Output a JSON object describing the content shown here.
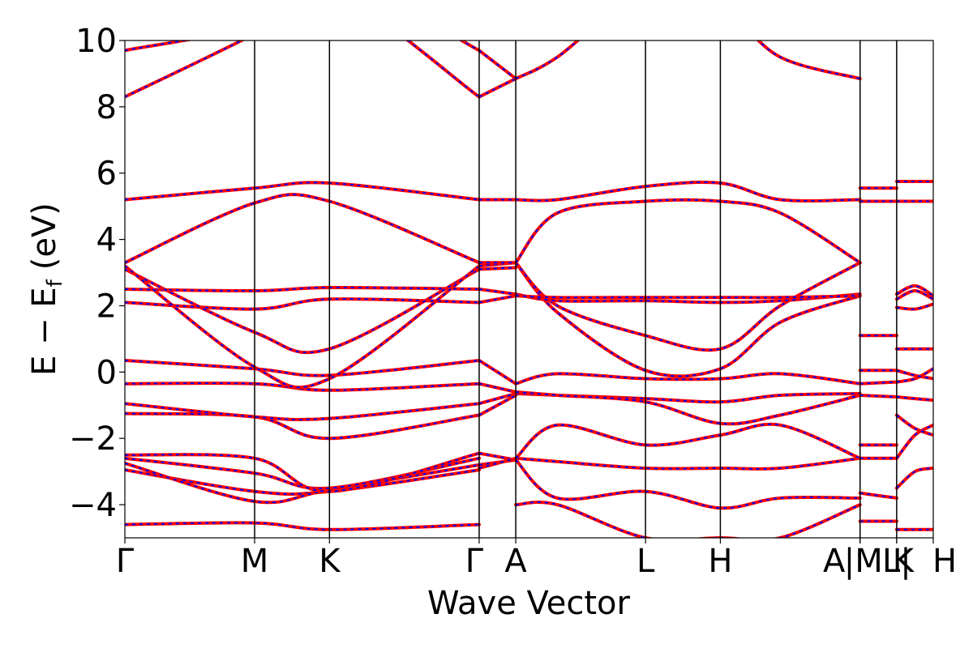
{
  "chart_data": {
    "type": "line",
    "xlabel": "Wave Vector",
    "ylabel": "E − E",
    "ylabel_sub": "f",
    "ylabel_unit": "(eV)",
    "ylim": [
      -5,
      10
    ],
    "yticks": [
      {
        "value": 10,
        "label": "10"
      },
      {
        "value": 8,
        "label": "8"
      },
      {
        "value": 6,
        "label": "6"
      },
      {
        "value": 4,
        "label": "4"
      },
      {
        "value": 2,
        "label": "2"
      },
      {
        "value": 0,
        "label": "0"
      },
      {
        "value": -2,
        "label": "−2"
      },
      {
        "value": -4,
        "label": "−4"
      }
    ],
    "xlim": [
      0,
      22.1
    ],
    "kpoints": [
      {
        "label": "Γ",
        "x": 0
      },
      {
        "label": "M",
        "x": 3.9
      },
      {
        "label": "K",
        "x": 6.15
      },
      {
        "label": "Γ",
        "x": 10.65
      },
      {
        "label": "A",
        "x": 11.75
      },
      {
        "label": "L",
        "x": 15.65
      },
      {
        "label": "H",
        "x": 17.9
      },
      {
        "label": "A",
        "x": 22.1
      },
      {
        "label": "|M",
        "x": 22.1
      },
      {
        "label": "L|",
        "x": 23.2
      },
      {
        "label": "K",
        "x": 23.2
      },
      {
        "label": "H",
        "x": 24.3
      }
    ],
    "dashed_overlay": true,
    "grid": false,
    "series_colors": {
      "solid": "#ff0000",
      "dashed": "#0000ff"
    },
    "segments": [
      {
        "x": [
          0,
          3.9,
          6.15,
          10.65
        ],
        "bands": [
          [
            -4.6,
            -4.55,
            -4.75,
            -4.6
          ],
          [
            -2.95,
            -3.6,
            -3.6,
            -2.95
          ],
          [
            -2.75,
            -3.9,
            -3.55,
            -2.8
          ],
          [
            -2.6,
            -3.05,
            -3.5,
            -2.6
          ],
          [
            -2.5,
            -2.6,
            -3.6,
            -2.45
          ],
          [
            -1.25,
            -1.35,
            -2.0,
            -1.3
          ],
          [
            -0.95,
            -1.35,
            -1.4,
            -0.95
          ],
          [
            -0.35,
            -0.35,
            -0.55,
            -0.35
          ],
          [
            0.35,
            0.1,
            -0.1,
            0.35
          ],
          [
            2.1,
            1.9,
            2.2,
            2.1
          ],
          [
            2.5,
            2.45,
            2.55,
            2.5
          ],
          [
            3.1,
            1.2,
            0.7,
            3.1
          ],
          [
            3.2,
            0.15,
            -0.2,
            3.2
          ],
          [
            3.3,
            5.1,
            5.15,
            3.3
          ],
          [
            5.2,
            5.55,
            5.7,
            5.2
          ],
          [
            8.3,
            10.2,
            11.5,
            8.3
          ],
          [
            9.7,
            10.5,
            12.0,
            9.7
          ]
        ]
      },
      {
        "x": [
          10.65,
          11.75
        ],
        "bands": [
          [
            -2.45,
            -2.65
          ],
          [
            -2.8,
            -2.65
          ],
          [
            -2.9,
            -2.6
          ],
          [
            -1.3,
            -0.7
          ],
          [
            -0.95,
            -0.65
          ],
          [
            -0.35,
            -0.6
          ],
          [
            0.35,
            -0.35
          ],
          [
            2.1,
            2.3
          ],
          [
            2.5,
            2.35
          ],
          [
            3.1,
            3.15
          ],
          [
            3.2,
            3.3
          ],
          [
            3.3,
            3.3
          ],
          [
            5.2,
            5.2
          ],
          [
            8.3,
            8.85
          ],
          [
            9.7,
            8.85
          ]
        ]
      },
      {
        "x": [
          11.75,
          13.0,
          15.65,
          17.9,
          19.7,
          22.1
        ],
        "bands": [
          [
            -4.0,
            -4.0,
            -5.0,
            -5.0,
            -5.0,
            -4.0
          ],
          [
            -2.65,
            -3.8,
            -3.6,
            -4.1,
            -3.8,
            -3.8
          ],
          [
            -2.6,
            -2.7,
            -2.9,
            -2.9,
            -2.9,
            -2.6
          ],
          [
            -2.6,
            -1.6,
            -2.2,
            -1.9,
            -1.6,
            -2.6
          ],
          [
            -0.65,
            -0.7,
            -0.8,
            -0.9,
            -0.7,
            -0.65
          ],
          [
            -0.6,
            -0.7,
            -0.9,
            -1.55,
            -1.3,
            -0.7
          ],
          [
            -0.35,
            -0.05,
            -0.2,
            -0.2,
            -0.05,
            -0.35
          ],
          [
            3.3,
            1.8,
            0.05,
            0.1,
            1.5,
            2.3
          ],
          [
            3.3,
            2.0,
            1.1,
            0.7,
            2.0,
            3.3
          ],
          [
            2.35,
            2.15,
            2.15,
            2.1,
            2.15,
            2.35
          ],
          [
            2.3,
            2.25,
            2.25,
            2.25,
            2.25,
            2.3
          ],
          [
            3.3,
            4.8,
            5.15,
            5.15,
            4.8,
            3.3
          ],
          [
            5.2,
            5.2,
            5.6,
            5.7,
            5.2,
            5.2
          ],
          [
            8.85,
            9.5,
            11.5,
            11.0,
            9.5,
            8.85
          ]
        ]
      },
      {
        "x": [
          22.1,
          23.2
        ],
        "bands": [
          [
            -4.5,
            -4.5
          ],
          [
            -3.65,
            -3.8
          ],
          [
            -2.6,
            -2.6
          ],
          [
            -2.2,
            -2.2
          ],
          [
            -0.7,
            -0.75
          ],
          [
            -0.35,
            -0.3
          ],
          [
            0.05,
            0.05
          ],
          [
            1.1,
            1.1
          ],
          [
            5.15,
            5.15
          ],
          [
            5.55,
            5.55
          ]
        ]
      },
      {
        "x": [
          23.2,
          23.75,
          24.3
        ],
        "bands": [
          [
            -4.75,
            -4.75,
            -4.75
          ],
          [
            -3.5,
            -3.0,
            -2.9
          ],
          [
            -2.6,
            -1.9,
            -1.6
          ],
          [
            -1.3,
            -1.7,
            -1.9
          ],
          [
            -0.75,
            -0.8,
            -0.85
          ],
          [
            -0.3,
            -0.2,
            0.1
          ],
          [
            0.05,
            -0.1,
            -0.2
          ],
          [
            0.7,
            0.7,
            0.7
          ],
          [
            1.95,
            1.9,
            2.05
          ],
          [
            2.2,
            2.45,
            2.2
          ],
          [
            2.35,
            2.6,
            2.3
          ],
          [
            5.15,
            5.15,
            5.15
          ],
          [
            5.75,
            5.75,
            5.75
          ]
        ]
      }
    ]
  }
}
